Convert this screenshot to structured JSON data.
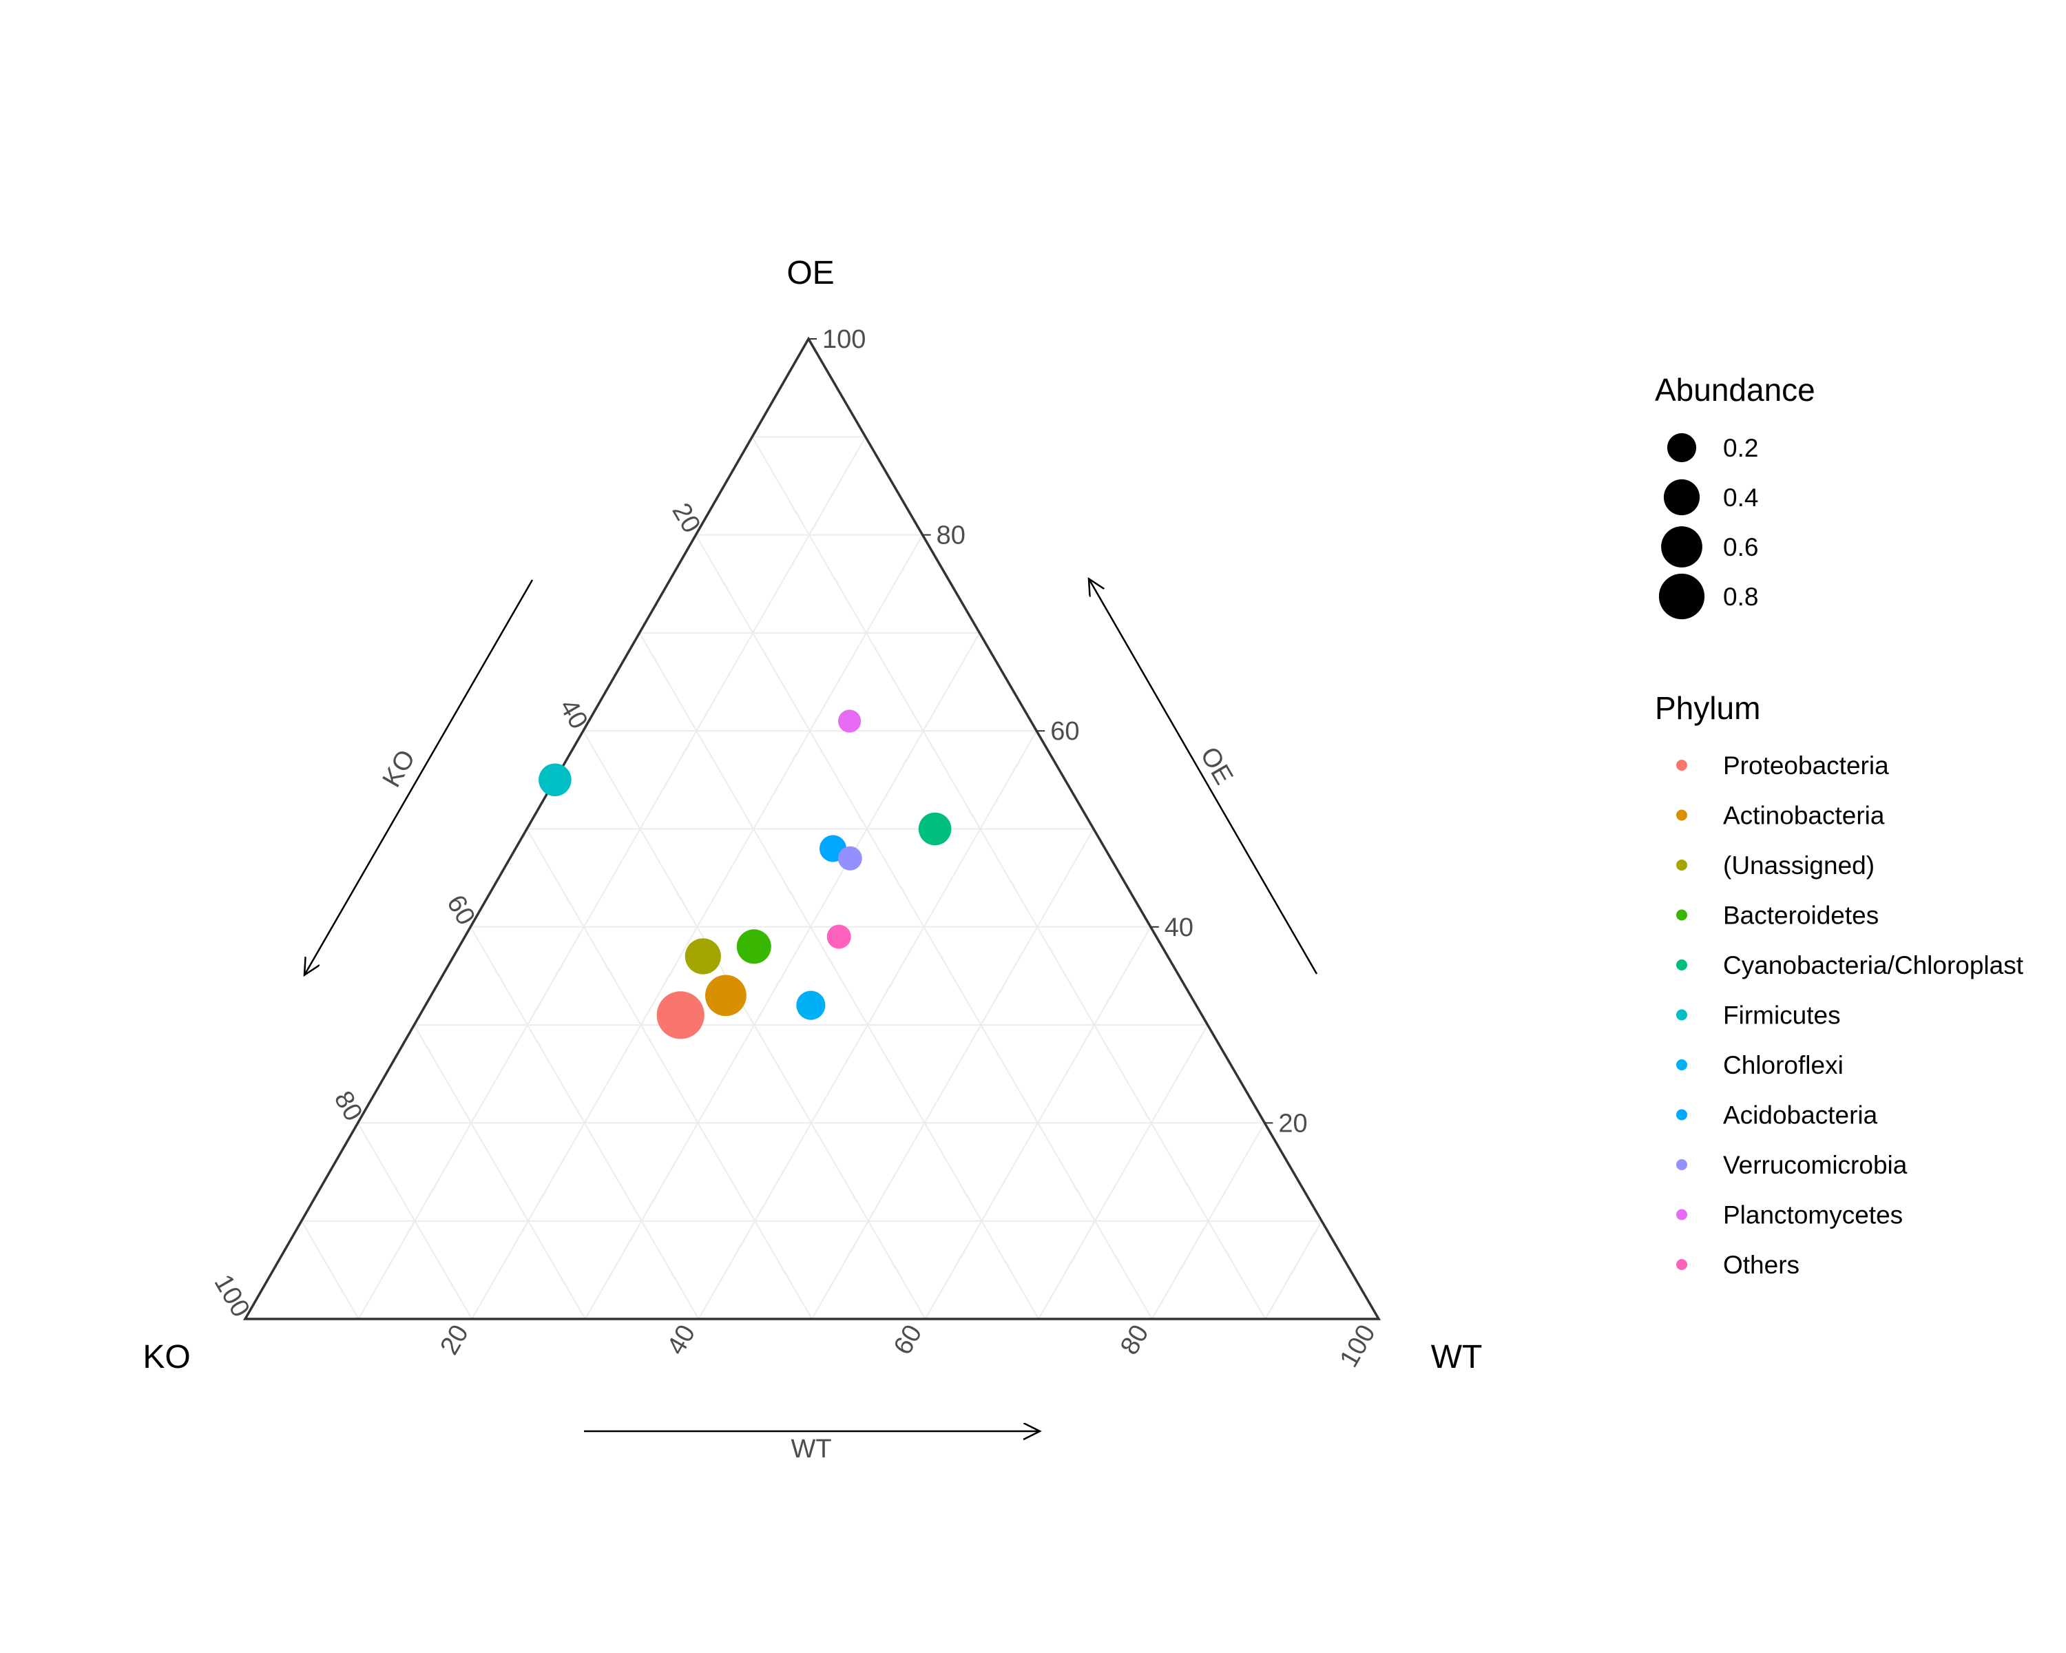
{
  "chart_data": {
    "type": "scatter",
    "subtype": "ternary",
    "vertices": {
      "top": "OE",
      "left": "KO",
      "right": "WT"
    },
    "axis_titles": {
      "left_edge": "KO",
      "right_edge": "OE",
      "bottom_edge": "WT"
    },
    "ticks": [
      20,
      40,
      60,
      80,
      100
    ],
    "tick_labels": [
      "20",
      "40",
      "60",
      "80",
      "100"
    ],
    "grid": true,
    "legend_position": "right",
    "legend": {
      "size_title": "Abundance",
      "size_items": [
        {
          "label": "0.2",
          "value": 0.2
        },
        {
          "label": "0.4",
          "value": 0.4
        },
        {
          "label": "0.6",
          "value": 0.6
        },
        {
          "label": "0.8",
          "value": 0.8
        }
      ],
      "color_title": "Phylum"
    },
    "series": [
      {
        "name": "Proteobacteria",
        "color": "#F8766D",
        "OE": 31,
        "KO": 46,
        "WT": 23,
        "abundance": 0.9
      },
      {
        "name": "Actinobacteria",
        "color": "#D89000",
        "OE": 33,
        "KO": 41,
        "WT": 26,
        "abundance": 0.6
      },
      {
        "name": "(Unassigned)",
        "color": "#A3A500",
        "OE": 37,
        "KO": 41,
        "WT": 22,
        "abundance": 0.4
      },
      {
        "name": "Bacteroidetes",
        "color": "#39B600",
        "OE": 38,
        "KO": 36,
        "WT": 26,
        "abundance": 0.35
      },
      {
        "name": "Cyanobacteria/Chloroplast",
        "color": "#00BF7D",
        "OE": 50,
        "KO": 14,
        "WT": 36,
        "abundance": 0.3
      },
      {
        "name": "Firmicutes",
        "color": "#00BFC4",
        "OE": 55,
        "KO": 45,
        "WT": 0,
        "abundance": 0.3
      },
      {
        "name": "Chloroflexi",
        "color": "#00B0F6",
        "OE": 32,
        "KO": 34,
        "WT": 34,
        "abundance": 0.2
      },
      {
        "name": "Acidobacteria",
        "color": "#00A7FF",
        "OE": 48,
        "KO": 24,
        "WT": 28,
        "abundance": 0.15
      },
      {
        "name": "Verrucomicrobia",
        "color": "#9590FF",
        "OE": 47,
        "KO": 23,
        "WT": 30,
        "abundance": 0.1
      },
      {
        "name": "Planctomycetes",
        "color": "#E76BF3",
        "OE": 61,
        "KO": 16,
        "WT": 23,
        "abundance": 0.08
      },
      {
        "name": "Others",
        "color": "#FF62BC",
        "OE": 39,
        "KO": 28,
        "WT": 33,
        "abundance": 0.1
      }
    ]
  }
}
